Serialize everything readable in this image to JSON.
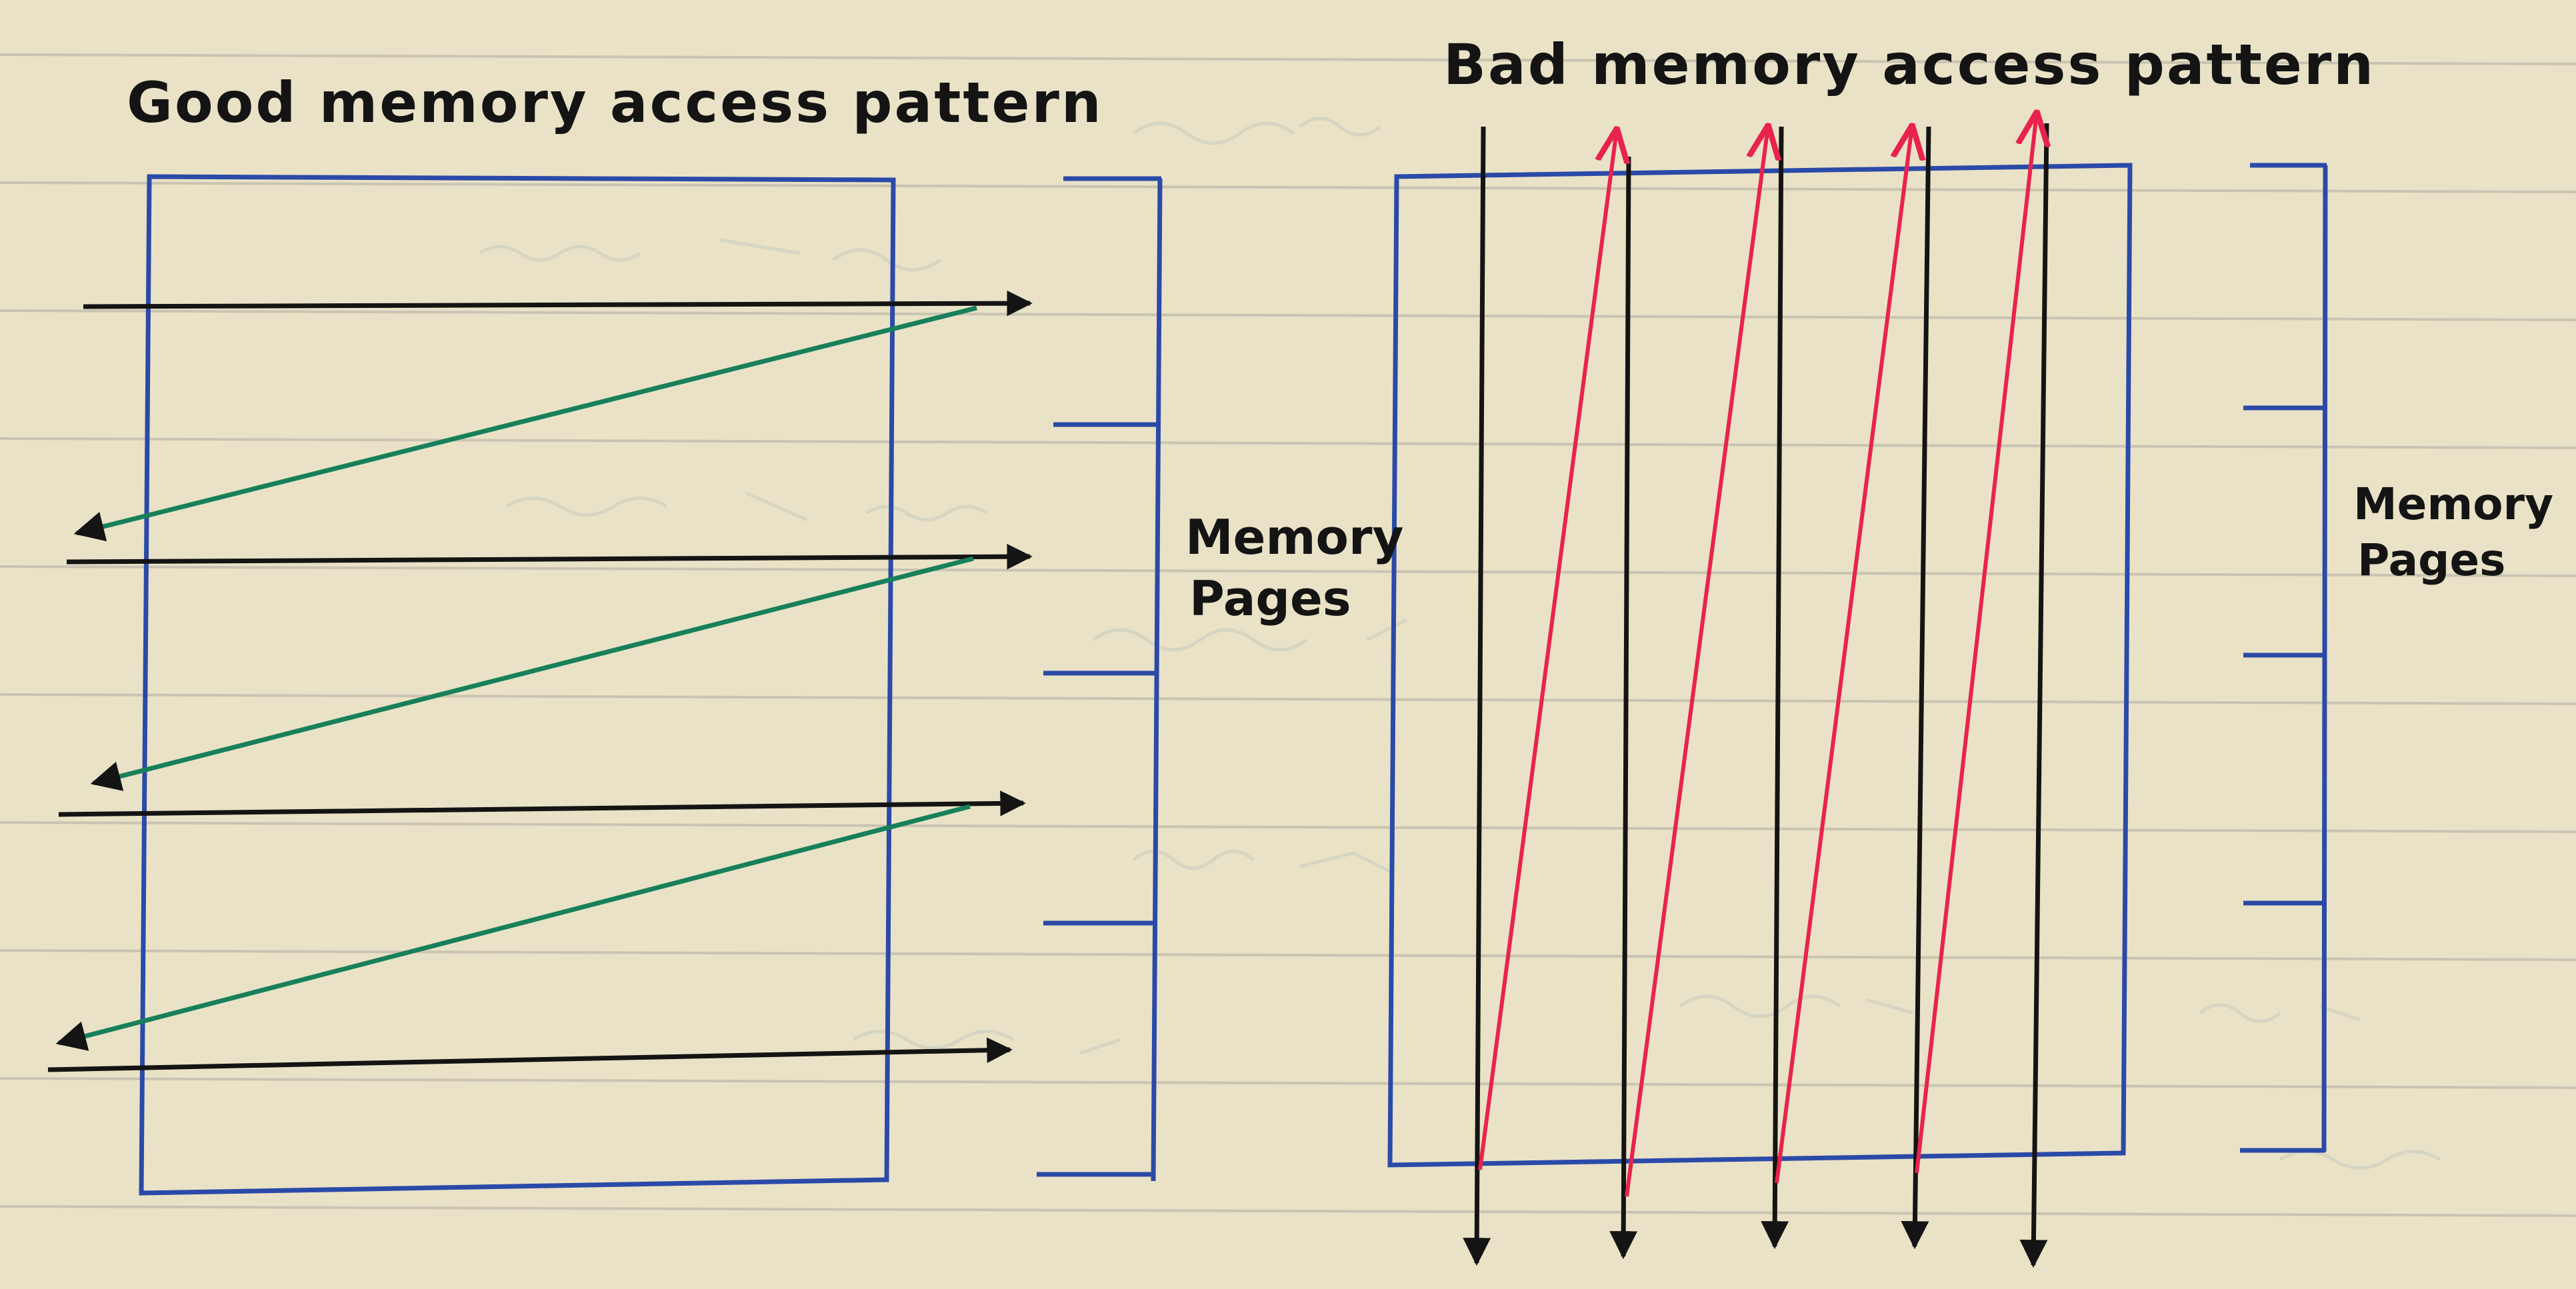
{
  "good_panel": {
    "title": "Good memory access pattern",
    "brace_label": [
      "Memory",
      "Pages"
    ],
    "pages": 4,
    "pattern": "row-wise"
  },
  "bad_panel": {
    "title": "Bad memory access pattern",
    "brace_label": [
      "Memory",
      "Pages"
    ],
    "pages": 4,
    "pattern": "column-wise"
  },
  "colors": {
    "paper": "#e9e2c6",
    "ruled_line": "#c9c4b2",
    "faint_ink": "#c6cbbf",
    "box": "#2b4aa8",
    "forward_arrow": "#141414",
    "return_arrow_good": "#17805a",
    "return_arrow_bad": "#e8234e"
  }
}
